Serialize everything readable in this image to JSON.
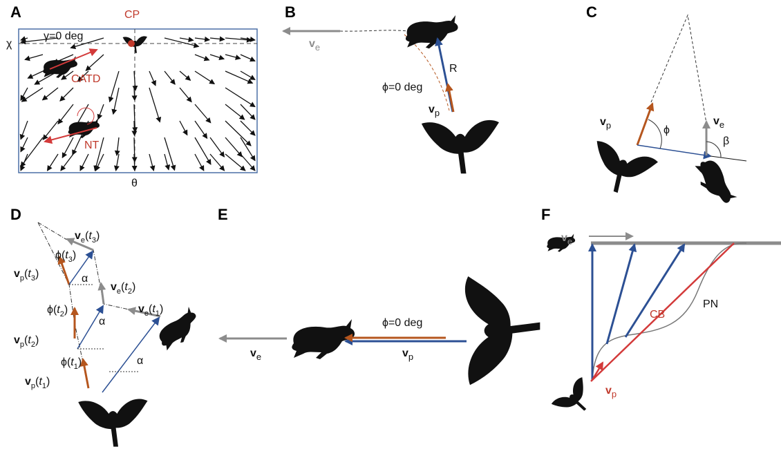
{
  "panels": [
    {
      "letter": "A",
      "labels": [
        [
          "CP"
        ],
        [
          "γ=0 deg"
        ],
        [
          "χ"
        ],
        [
          "CATD"
        ],
        [
          "NT"
        ],
        [
          "θ"
        ]
      ]
    },
    {
      "letter": "B",
      "labels": [
        [
          "v",
          "e"
        ],
        [
          "R"
        ],
        [
          "ϕ=0 deg"
        ],
        [
          "v",
          "p"
        ]
      ]
    },
    {
      "letter": "C",
      "labels": [
        [
          "v",
          "p"
        ],
        [
          "ϕ"
        ],
        [
          "v",
          "e"
        ],
        [
          "β"
        ]
      ]
    },
    {
      "letter": "D",
      "labels": [
        [
          "v",
          "e",
          "(",
          "t",
          "3",
          ")"
        ],
        [
          "ϕ(",
          "t",
          "3",
          ")"
        ],
        [
          "v",
          "p",
          "(",
          "t",
          "3",
          ")"
        ],
        [
          "α"
        ],
        [
          "v",
          "e",
          "(",
          "t",
          "2",
          ")"
        ],
        [
          "ϕ(",
          "t",
          "2",
          ")"
        ],
        [
          "α"
        ],
        [
          "v",
          "e",
          "(",
          "t",
          "1",
          ")"
        ],
        [
          "v",
          "p",
          "(",
          "t",
          "2",
          ")"
        ],
        [
          "ϕ(",
          "t",
          "1",
          ")"
        ],
        [
          "α"
        ],
        [
          "v",
          "p",
          "(",
          "t",
          "1",
          ")"
        ]
      ]
    },
    {
      "letter": "E",
      "labels": [
        [
          "ϕ=0 deg"
        ],
        [
          "v",
          "e"
        ],
        [
          "v",
          "p"
        ]
      ]
    },
    {
      "letter": "F",
      "labels": [
        [
          "v",
          "e"
        ],
        [
          "CB"
        ],
        [
          "PN"
        ],
        [
          "v",
          "p"
        ]
      ]
    }
  ]
}
